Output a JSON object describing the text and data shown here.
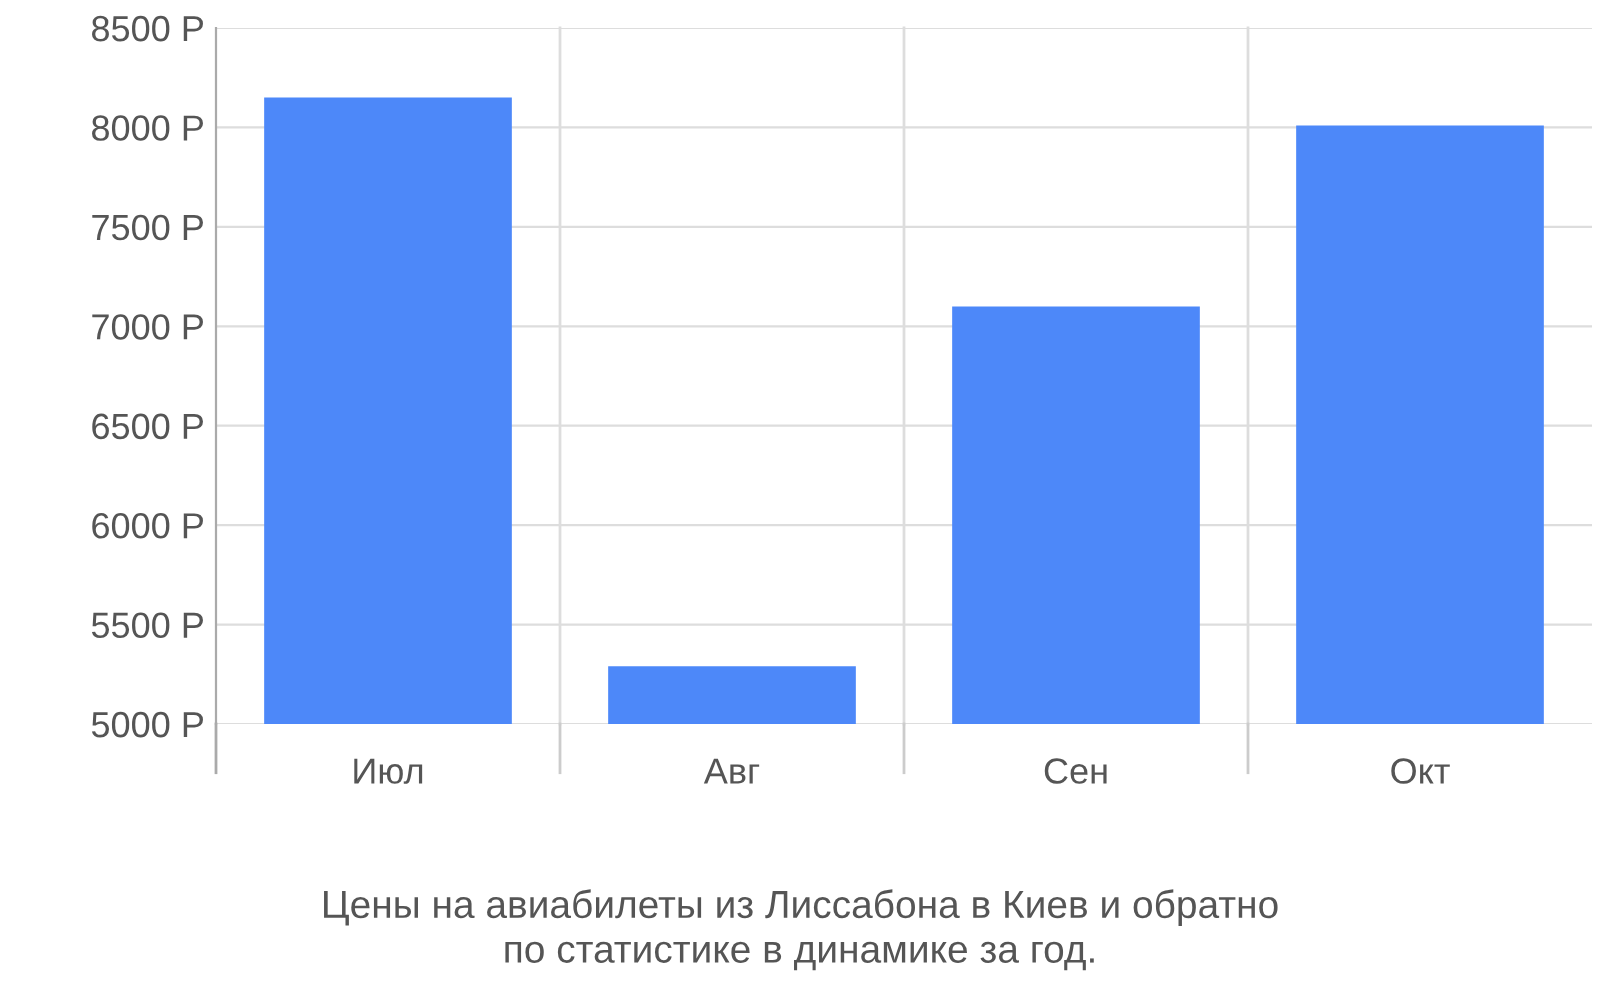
{
  "chart_data": {
    "type": "bar",
    "title": "Цены на авиабилеты из Лиссабона в Киев и обратно\nпо статистике в динамике за год.",
    "categories": [
      "Июл",
      "Авг",
      "Сен",
      "Окт"
    ],
    "values": [
      8150,
      5290,
      7100,
      8010
    ],
    "color": "#4d88f9",
    "ylim": [
      5000,
      8500
    ],
    "yticks": [
      {
        "value": 5000,
        "label": "5000 Р"
      },
      {
        "value": 5500,
        "label": "5500 Р"
      },
      {
        "value": 6000,
        "label": "6000 Р"
      },
      {
        "value": 6500,
        "label": "6500 Р"
      },
      {
        "value": 7000,
        "label": "7000 Р"
      },
      {
        "value": 7500,
        "label": "7500 Р"
      },
      {
        "value": 8000,
        "label": "8000 Р"
      },
      {
        "value": 8500,
        "label": "8500 Р"
      }
    ],
    "grid": true
  }
}
